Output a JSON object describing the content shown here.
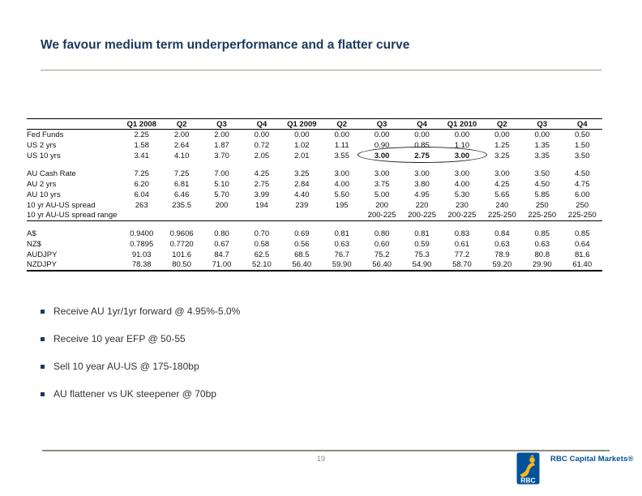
{
  "slide": {
    "title": "We favour medium term underperformance and a flatter curve"
  },
  "table": {
    "columns": [
      "Q1 2008",
      "Q2",
      "Q3",
      "Q4",
      "Q1 2009",
      "Q2",
      "Q3",
      "Q4",
      "Q1 2010",
      "Q2",
      "Q3",
      "Q4"
    ],
    "sections": [
      {
        "name": "us-rates",
        "rows": [
          {
            "label": "Fed Funds",
            "values": [
              "2.25",
              "2.00",
              "2.00",
              "0.00",
              "0.00",
              "0.00",
              "0.00",
              "0.00",
              "0.00",
              "0.00",
              "0.00",
              "0.50"
            ]
          },
          {
            "label": "US 2 yrs",
            "values": [
              "1.58",
              "2.64",
              "1.87",
              "0.72",
              "1.02",
              "1.11",
              "0.90",
              "0.85",
              "1.10",
              "1.25",
              "1.35",
              "1.50"
            ]
          },
          {
            "label": "US 10 yrs",
            "values": [
              "3.41",
              "4.10",
              "3.70",
              "2.05",
              "2.01",
              "3.55",
              "3.00",
              "2.75",
              "3.00",
              "3.25",
              "3.35",
              "3.50"
            ],
            "bold": [
              6,
              7,
              8
            ]
          }
        ]
      },
      {
        "name": "au-rates",
        "rows": [
          {
            "label": "AU Cash Rate",
            "values": [
              "7.25",
              "7.25",
              "7.00",
              "4.25",
              "3.25",
              "3.00",
              "3.00",
              "3.00",
              "3.00",
              "3.00",
              "3.50",
              "4.50"
            ]
          },
          {
            "label": "AU 2 yrs",
            "values": [
              "6.20",
              "6.81",
              "5.10",
              "2.75",
              "2.84",
              "4.00",
              "3.75",
              "3.80",
              "4.00",
              "4.25",
              "4.50",
              "4.75"
            ]
          },
          {
            "label": "AU 10 yrs",
            "values": [
              "6.04",
              "6.46",
              "5.70",
              "3.99",
              "4.40",
              "5.50",
              "5.00",
              "4.95",
              "5.30",
              "5.65",
              "5.85",
              "6.00"
            ]
          },
          {
            "label": "10 yr AU-US spread",
            "values": [
              "263",
              "235.5",
              "200",
              "194",
              "239",
              "195",
              "200",
              "220",
              "230",
              "240",
              "250",
              "250"
            ]
          },
          {
            "label": "10 yr AU-US spread range",
            "values": [
              "",
              "",
              "",
              "",
              "",
              "",
              "200-225",
              "200-225",
              "200-225",
              "225-250",
              "225-250",
              "225-250"
            ]
          }
        ]
      },
      {
        "name": "fx",
        "rows": [
          {
            "label": "A$",
            "values": [
              "0.9400",
              "0.9606",
              "0.80",
              "0.70",
              "0.69",
              "0.81",
              "0.80",
              "0.81",
              "0.83",
              "0.84",
              "0.85",
              "0.85"
            ]
          },
          {
            "label": "NZ$",
            "values": [
              "0.7895",
              "0.7720",
              "0.67",
              "0.58",
              "0.56",
              "0.63",
              "0.60",
              "0.59",
              "0.61",
              "0.63",
              "0.63",
              "0.64"
            ]
          },
          {
            "label": "AUDJPY",
            "values": [
              "91.03",
              "101.6",
              "84.7",
              "62.5",
              "68.5",
              "76.7",
              "75.2",
              "75.3",
              "77.2",
              "78.9",
              "80.8",
              "81.6"
            ]
          },
          {
            "label": "NZDJPY",
            "values": [
              "78.38",
              "80.50",
              "71.00",
              "52.10",
              "56.40",
              "59.90",
              "56.40",
              "54.90",
              "58.70",
              "59.20",
              "29.90",
              "61.40"
            ]
          }
        ]
      }
    ],
    "annotation": {
      "shape": "ellipse",
      "row": "US 10 yrs",
      "columns": [
        "Q3 2009",
        "Q4 2009",
        "Q1 2010"
      ],
      "circled_values": [
        "3.00",
        "2.75",
        "3.00"
      ]
    }
  },
  "bullets": [
    {
      "text": "Receive AU 1yr/1yr forward @ 4.95%-5.0%"
    },
    {
      "text": "Receive 10 year EFP @ 50-55"
    },
    {
      "text": "Sell 10 year AU-US @ 175-180bp"
    },
    {
      "text": "AU flattener vs UK steepener @ 70bp"
    }
  ],
  "footer": {
    "page_number": "19",
    "brand": "RBC Capital Markets®",
    "logo_text": "RBC"
  },
  "colors": {
    "title_navy": "#1b3a5e",
    "brand_blue": "#00529b",
    "brand_gold": "#f5b91d",
    "rule_tan": "#a39b88",
    "footer_gray": "#8f8c7c"
  }
}
